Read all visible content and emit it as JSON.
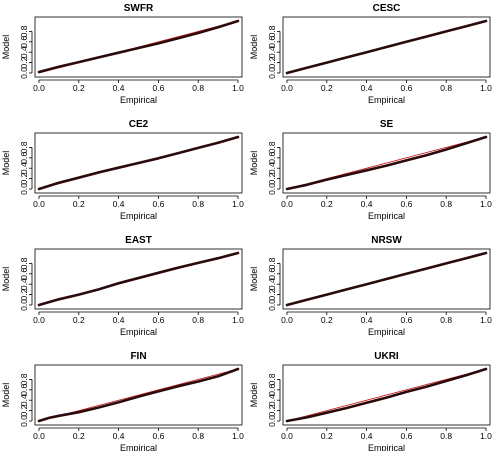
{
  "chart_data": [
    {
      "type": "line",
      "title": "SWFR",
      "xlabel": "Empirical",
      "ylabel": "Model",
      "xlim": [
        0,
        1
      ],
      "ylim": [
        0,
        1
      ],
      "xticks": [
        "0.0",
        "0.2",
        "0.4",
        "0.6",
        "0.8",
        "1.0"
      ],
      "yticks": [
        "0.0",
        "0.2",
        "0.4",
        "0.6",
        "0.8"
      ],
      "reference_line_color": "#cc1111",
      "series_color": "#2a0a0a",
      "x": [
        0,
        0.1,
        0.2,
        0.3,
        0.4,
        0.5,
        0.6,
        0.7,
        0.8,
        0.9,
        1.0
      ],
      "y": [
        0.02,
        0.12,
        0.21,
        0.3,
        0.39,
        0.48,
        0.57,
        0.67,
        0.77,
        0.88,
        1.0
      ]
    },
    {
      "type": "line",
      "title": "CESC",
      "xlabel": "Empirical",
      "ylabel": "Model",
      "xlim": [
        0,
        1
      ],
      "ylim": [
        0,
        1
      ],
      "xticks": [
        "0.0",
        "0.2",
        "0.4",
        "0.6",
        "0.8",
        "1.0"
      ],
      "yticks": [
        "0.0",
        "0.2",
        "0.4",
        "0.6",
        "0.8"
      ],
      "reference_line_color": "#cc1111",
      "series_color": "#2a0a0a",
      "x": [
        0,
        0.1,
        0.2,
        0.3,
        0.4,
        0.5,
        0.6,
        0.7,
        0.8,
        0.9,
        1.0
      ],
      "y": [
        0.0,
        0.1,
        0.2,
        0.3,
        0.4,
        0.5,
        0.6,
        0.7,
        0.8,
        0.9,
        1.0
      ]
    },
    {
      "type": "line",
      "title": "CE2",
      "xlabel": "Empirical",
      "ylabel": "Model",
      "xlim": [
        0,
        1
      ],
      "ylim": [
        0,
        1
      ],
      "xticks": [
        "0.0",
        "0.2",
        "0.4",
        "0.6",
        "0.8",
        "1.0"
      ],
      "yticks": [
        "0.0",
        "0.2",
        "0.4",
        "0.6",
        "0.8"
      ],
      "reference_line_color": "#cc1111",
      "series_color": "#2a0a0a",
      "x": [
        0,
        0.1,
        0.2,
        0.3,
        0.4,
        0.5,
        0.6,
        0.7,
        0.8,
        0.9,
        1.0
      ],
      "y": [
        0.0,
        0.12,
        0.22,
        0.32,
        0.41,
        0.5,
        0.59,
        0.69,
        0.79,
        0.89,
        1.0
      ]
    },
    {
      "type": "line",
      "title": "SE",
      "xlabel": "Empirical",
      "ylabel": "Model",
      "xlim": [
        0,
        1
      ],
      "ylim": [
        0,
        1
      ],
      "xticks": [
        "0.0",
        "0.2",
        "0.4",
        "0.6",
        "0.8",
        "1.0"
      ],
      "yticks": [
        "0.0",
        "0.2",
        "0.4",
        "0.6",
        "0.8"
      ],
      "reference_line_color": "#cc1111",
      "series_color": "#2a0a0a",
      "x": [
        0,
        0.1,
        0.2,
        0.3,
        0.4,
        0.5,
        0.6,
        0.7,
        0.8,
        0.9,
        1.0
      ],
      "y": [
        0.0,
        0.08,
        0.18,
        0.27,
        0.36,
        0.45,
        0.55,
        0.65,
        0.76,
        0.88,
        1.0
      ]
    },
    {
      "type": "line",
      "title": "EAST",
      "xlabel": "Empirical",
      "ylabel": "Model",
      "xlim": [
        0,
        1
      ],
      "ylim": [
        0,
        1
      ],
      "xticks": [
        "0.0",
        "0.2",
        "0.4",
        "0.6",
        "0.8",
        "1.0"
      ],
      "yticks": [
        "0.0",
        "0.2",
        "0.4",
        "0.6",
        "0.8"
      ],
      "reference_line_color": "#cc1111",
      "series_color": "#2a0a0a",
      "x": [
        0,
        0.1,
        0.2,
        0.3,
        0.4,
        0.5,
        0.6,
        0.7,
        0.8,
        0.9,
        1.0
      ],
      "y": [
        0.0,
        0.11,
        0.2,
        0.3,
        0.42,
        0.52,
        0.62,
        0.72,
        0.81,
        0.9,
        1.0
      ]
    },
    {
      "type": "line",
      "title": "NRSW",
      "xlabel": "Empirical",
      "ylabel": "Model",
      "xlim": [
        0,
        1
      ],
      "ylim": [
        0,
        1
      ],
      "xticks": [
        "0.0",
        "0.2",
        "0.4",
        "0.6",
        "0.8",
        "1.0"
      ],
      "yticks": [
        "0.0",
        "0.2",
        "0.4",
        "0.6",
        "0.8"
      ],
      "reference_line_color": "#cc1111",
      "series_color": "#2a0a0a",
      "x": [
        0,
        0.1,
        0.2,
        0.3,
        0.4,
        0.5,
        0.6,
        0.7,
        0.8,
        0.9,
        1.0
      ],
      "y": [
        0.0,
        0.1,
        0.2,
        0.3,
        0.4,
        0.5,
        0.6,
        0.7,
        0.8,
        0.9,
        1.0
      ]
    },
    {
      "type": "line",
      "title": "FIN",
      "xlabel": "Empirical",
      "ylabel": "Model",
      "xlim": [
        0,
        1
      ],
      "ylim": [
        0,
        1
      ],
      "xticks": [
        "0.0",
        "0.2",
        "0.4",
        "0.6",
        "0.8",
        "1.0"
      ],
      "yticks": [
        "0.0",
        "0.2",
        "0.4",
        "0.6",
        "0.8"
      ],
      "reference_line_color": "#cc1111",
      "series_color": "#2a0a0a",
      "x": [
        0,
        0.05,
        0.1,
        0.2,
        0.3,
        0.4,
        0.5,
        0.6,
        0.7,
        0.8,
        0.9,
        1.0
      ],
      "y": [
        0.0,
        0.06,
        0.1,
        0.17,
        0.26,
        0.36,
        0.47,
        0.57,
        0.67,
        0.76,
        0.86,
        1.0
      ]
    },
    {
      "type": "line",
      "title": "UKRI",
      "xlabel": "Empirical",
      "ylabel": "Model",
      "xlim": [
        0,
        1
      ],
      "ylim": [
        0,
        1
      ],
      "xticks": [
        "0.0",
        "0.2",
        "0.4",
        "0.6",
        "0.8",
        "1.0"
      ],
      "yticks": [
        "0.0",
        "0.2",
        "0.4",
        "0.6",
        "0.8"
      ],
      "reference_line_color": "#cc1111",
      "series_color": "#2a0a0a",
      "x": [
        0,
        0.1,
        0.2,
        0.3,
        0.4,
        0.5,
        0.6,
        0.7,
        0.8,
        0.9,
        1.0
      ],
      "y": [
        0.0,
        0.07,
        0.16,
        0.25,
        0.35,
        0.45,
        0.56,
        0.66,
        0.77,
        0.88,
        1.0
      ]
    }
  ]
}
